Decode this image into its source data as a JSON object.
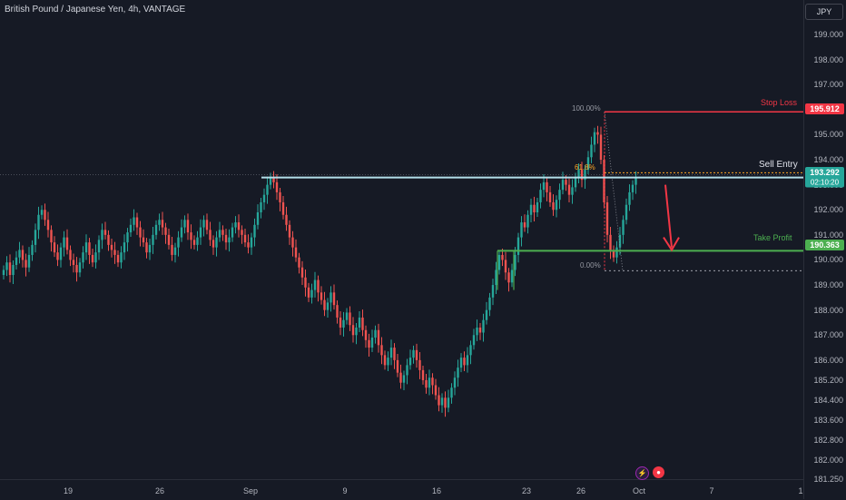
{
  "header": {
    "symbol_title": "British Pound / Japanese Yen, 4h, VANTAGE",
    "currency": "JPY"
  },
  "colors": {
    "background": "#161a25",
    "up": "#26a69a",
    "down": "#ef5350",
    "stop": "#f23645",
    "entry": "#b2dfea",
    "profit": "#4caf50"
  },
  "chart_data": {
    "type": "candlestick",
    "timeframe": "4h",
    "ylim": [
      181.25,
      199.4
    ],
    "price_ticks": [
      "199.000",
      "198.000",
      "197.000",
      "196.000",
      "195.000",
      "194.000",
      "193.000",
      "192.000",
      "191.000",
      "190.000",
      "189.000",
      "188.000",
      "187.000",
      "186.000",
      "185.200",
      "184.400",
      "183.600",
      "182.800",
      "182.000",
      "181.250"
    ],
    "x_ticks": [
      "19",
      "26",
      "Sep",
      "9",
      "16",
      "23",
      "26",
      "Oct",
      "7",
      "1"
    ],
    "closes": [
      189.6,
      189.9,
      189.4,
      189.8,
      190.1,
      190.4,
      190.0,
      189.7,
      190.2,
      190.6,
      191.2,
      191.8,
      192.0,
      191.6,
      191.2,
      190.7,
      190.3,
      190.0,
      190.5,
      190.9,
      190.4,
      190.0,
      189.8,
      189.5,
      189.9,
      190.3,
      190.7,
      190.2,
      189.9,
      190.3,
      190.8,
      191.2,
      191.0,
      190.6,
      190.4,
      190.2,
      189.9,
      190.3,
      190.7,
      191.1,
      191.4,
      191.7,
      191.3,
      190.9,
      190.7,
      190.3,
      190.6,
      191.0,
      191.4,
      191.6,
      191.3,
      191.0,
      190.6,
      190.2,
      190.5,
      190.9,
      191.3,
      191.6,
      191.1,
      190.8,
      190.6,
      190.9,
      191.3,
      191.6,
      191.2,
      190.8,
      190.5,
      190.9,
      191.2,
      191.0,
      190.7,
      190.9,
      191.3,
      191.5,
      191.2,
      191.0,
      190.7,
      190.5,
      190.9,
      191.4,
      191.9,
      192.3,
      192.6,
      193.0,
      193.3,
      193.1,
      192.7,
      192.3,
      191.8,
      191.4,
      190.9,
      190.5,
      190.1,
      189.7,
      189.3,
      188.9,
      188.5,
      188.8,
      189.2,
      188.7,
      188.4,
      188.0,
      188.3,
      188.7,
      188.2,
      187.7,
      187.3,
      187.6,
      187.9,
      187.4,
      187.0,
      187.3,
      187.7,
      187.2,
      186.8,
      186.5,
      186.9,
      187.2,
      186.6,
      186.2,
      185.8,
      186.1,
      186.5,
      186.0,
      185.5,
      185.1,
      185.4,
      185.8,
      186.1,
      186.4,
      186.0,
      185.6,
      185.2,
      184.9,
      185.3,
      185.0,
      184.6,
      184.2,
      184.5,
      184.1,
      184.5,
      184.9,
      185.3,
      185.7,
      186.1,
      185.8,
      186.2,
      186.6,
      187.0,
      187.3,
      187.1,
      187.6,
      188.0,
      188.5,
      189.0,
      189.6,
      190.2,
      190.0,
      189.5,
      189.1,
      189.6,
      190.2,
      190.9,
      191.5,
      191.3,
      191.8,
      192.2,
      191.9,
      192.3,
      192.8,
      193.1,
      192.7,
      192.3,
      192.0,
      192.4,
      192.8,
      193.2,
      193.0,
      192.6,
      192.9,
      193.3,
      193.6,
      193.2,
      193.6,
      194.1,
      194.6,
      195.1,
      195.0,
      194.0,
      192.3,
      191.0,
      190.4,
      190.1,
      190.5,
      191.0,
      191.6,
      192.2,
      192.7,
      193.0,
      193.29
    ],
    "current_price": 193.292,
    "countdown": "02:10:20",
    "fib_levels": [
      {
        "label": "100.00%",
        "price": 195.912
      },
      {
        "label": "61.8%",
        "price": 193.48
      },
      {
        "label": "0.00%",
        "price": 189.57
      }
    ],
    "lines": [
      {
        "name": "Stop Loss",
        "price": 195.912
      },
      {
        "name": "Sell Entry",
        "price": 193.292
      },
      {
        "name": "Take Profit",
        "price": 190.363
      }
    ],
    "labels": {
      "stop_price": "195.912",
      "entry_price": "193.292",
      "profit_price": "190.363"
    },
    "annotations": {
      "stop_loss": "Stop Loss",
      "sell_entry": "Sell Entry",
      "take_profit": "Take Profit",
      "fib_100": "100.00%",
      "fib_618": "61.8%",
      "fib_0": "0.00%"
    },
    "legend": "none",
    "grid": false
  }
}
